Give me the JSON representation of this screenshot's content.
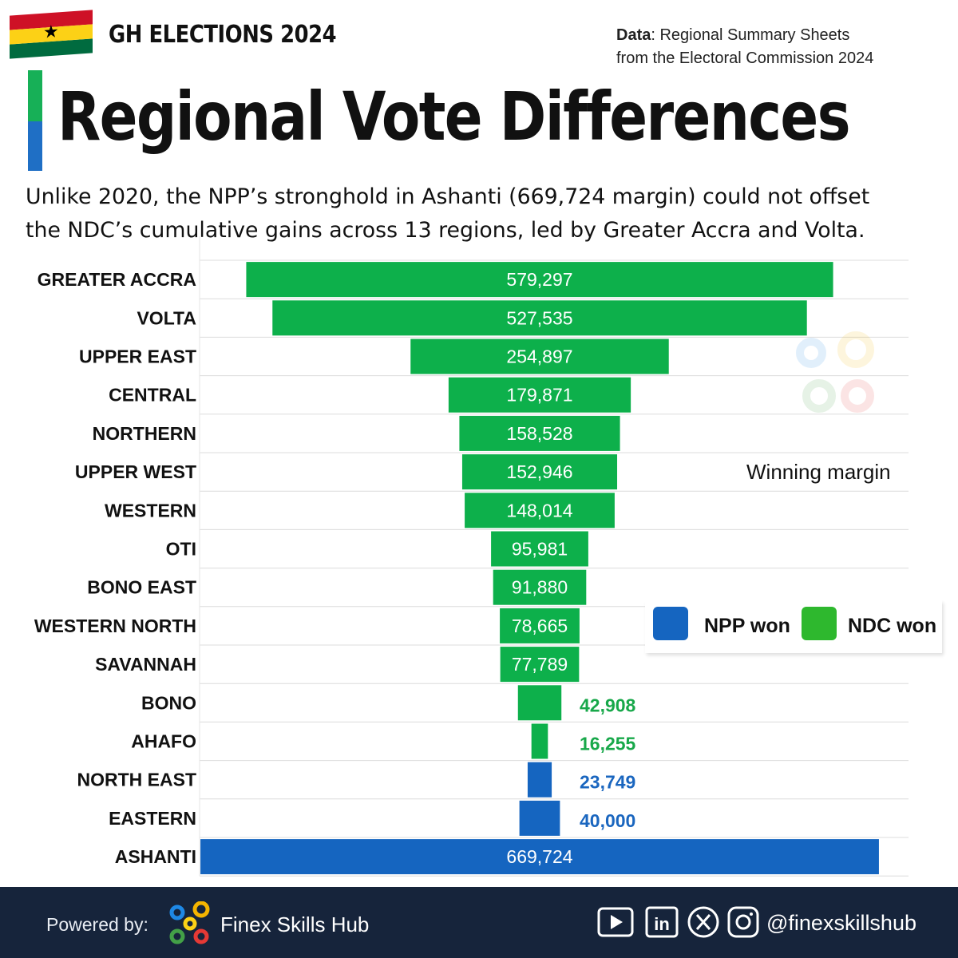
{
  "header": {
    "top_title": "GH ELECTIONS 2024",
    "source_label": "Data",
    "source_line1": ": Regional Summary Sheets",
    "source_line2": "from the Electoral Commission 2024",
    "main_title": "Regional Vote Differences",
    "subtitle_line1": "Unlike 2020, the NPP’s stronghold in Ashanti (669,724 margin) could not offset",
    "subtitle_line2": "the NDC’s cumulative gains across 13 regions, led by Greater Accra and Volta."
  },
  "legend": {
    "title": "Winning margin",
    "npp_label": "NPP won",
    "ndc_label": "NDC won"
  },
  "colors": {
    "ndc": "#0db04b",
    "npp": "#1565c0",
    "ndc_text": "#18a84a",
    "npp_text": "#1a66bf"
  },
  "chart_data": {
    "type": "bar",
    "orientation": "horizontal-centered",
    "title": "Regional Vote Differences",
    "value_label": "Winning margin",
    "categories": [
      "GREATER ACCRA",
      "VOLTA",
      "UPPER EAST",
      "CENTRAL",
      "NORTHERN",
      "UPPER WEST",
      "WESTERN",
      "OTI",
      "BONO EAST",
      "WESTERN NORTH",
      "SAVANNAH",
      "BONO",
      "AHAFO",
      "NORTH EAST",
      "EASTERN",
      "ASHANTI"
    ],
    "values": [
      579297,
      527535,
      254897,
      179871,
      158528,
      152946,
      148014,
      95981,
      91880,
      78665,
      77789,
      42908,
      16255,
      23749,
      40000,
      669724
    ],
    "value_labels": [
      "579,297",
      "527,535",
      "254,897",
      "179,871",
      "158,528",
      "152,946",
      "148,014",
      "95,981",
      "91,880",
      "78,665",
      "77,789",
      "42,908",
      "16,255",
      "23,749",
      "40,000",
      "669,724"
    ],
    "winner": [
      "NDC",
      "NDC",
      "NDC",
      "NDC",
      "NDC",
      "NDC",
      "NDC",
      "NDC",
      "NDC",
      "NDC",
      "NDC",
      "NDC",
      "NDC",
      "NPP",
      "NPP",
      "NPP"
    ],
    "legend": [
      {
        "name": "NPP won",
        "color": "#1565c0"
      },
      {
        "name": "NDC won",
        "color": "#2eb82e"
      }
    ]
  },
  "footer": {
    "powered_by": "Powered by:",
    "brand": "Finex Skills Hub",
    "handle": "@finexskillshub",
    "social_icons": [
      "youtube-icon",
      "linkedin-icon",
      "x-icon",
      "instagram-icon"
    ]
  }
}
